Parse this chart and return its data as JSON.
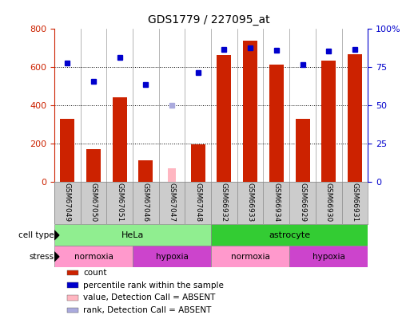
{
  "title": "GDS1779 / 227095_at",
  "samples": [
    "GSM67049",
    "GSM67050",
    "GSM67051",
    "GSM67046",
    "GSM67047",
    "GSM67048",
    "GSM66932",
    "GSM66933",
    "GSM66934",
    "GSM66929",
    "GSM66930",
    "GSM66931"
  ],
  "count_values": [
    330,
    170,
    440,
    110,
    null,
    195,
    665,
    740,
    615,
    330,
    635,
    670
  ],
  "count_absent": [
    null,
    null,
    null,
    null,
    70,
    null,
    null,
    null,
    null,
    null,
    null,
    null
  ],
  "rank_values": [
    620,
    525,
    650,
    510,
    null,
    570,
    695,
    700,
    690,
    615,
    685,
    695
  ],
  "rank_absent": [
    null,
    null,
    null,
    null,
    400,
    null,
    null,
    null,
    null,
    null,
    null,
    null
  ],
  "ylim_left": [
    0,
    800
  ],
  "ylim_right": [
    0,
    100
  ],
  "yticks_left": [
    0,
    200,
    400,
    600,
    800
  ],
  "yticks_right": [
    0,
    25,
    50,
    75,
    100
  ],
  "ytick_labels_right": [
    "0",
    "25",
    "50",
    "75",
    "100%"
  ],
  "cell_type_groups": [
    {
      "label": "HeLa",
      "start": 0,
      "end": 6,
      "color": "#90EE90"
    },
    {
      "label": "astrocyte",
      "start": 6,
      "end": 12,
      "color": "#33CC33"
    }
  ],
  "stress_groups": [
    {
      "label": "normoxia",
      "start": 0,
      "end": 3,
      "color": "#FF99CC"
    },
    {
      "label": "hypoxia",
      "start": 3,
      "end": 6,
      "color": "#CC44CC"
    },
    {
      "label": "normoxia",
      "start": 6,
      "end": 9,
      "color": "#FF99CC"
    },
    {
      "label": "hypoxia",
      "start": 9,
      "end": 12,
      "color": "#CC44CC"
    }
  ],
  "bar_color": "#CC2200",
  "bar_absent_color": "#FFB6C1",
  "rank_color": "#0000CC",
  "rank_absent_color": "#AAAADD",
  "grid_color": "#000000",
  "bg_color": "#FFFFFF",
  "label_color_left": "#CC2200",
  "label_color_right": "#0000CC",
  "legend_items": [
    {
      "label": "count",
      "color": "#CC2200"
    },
    {
      "label": "percentile rank within the sample",
      "color": "#0000CC"
    },
    {
      "label": "value, Detection Call = ABSENT",
      "color": "#FFB6C1"
    },
    {
      "label": "rank, Detection Call = ABSENT",
      "color": "#AAAADD"
    }
  ]
}
